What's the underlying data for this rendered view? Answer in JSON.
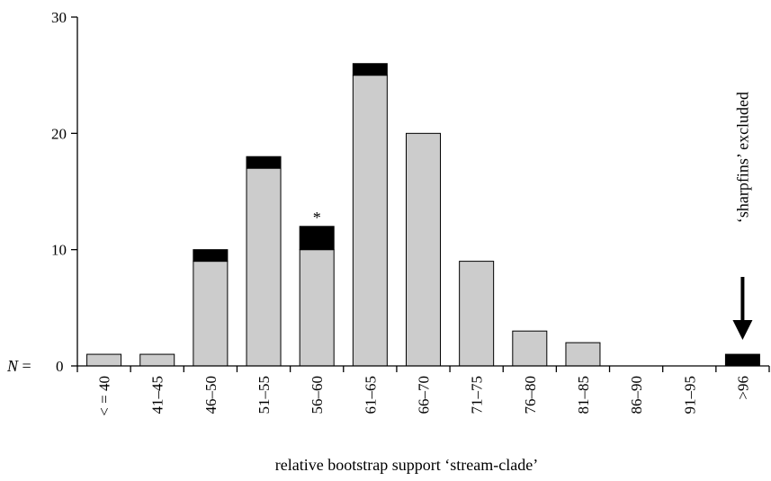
{
  "chart_data": {
    "type": "bar",
    "stacked": true,
    "categories": [
      "< = 40",
      "41–45",
      "46–50",
      "51–55",
      "56–60",
      "61–65",
      "66–70",
      "71–75",
      "76–80",
      "81–85",
      "86–90",
      "91–95",
      ">96"
    ],
    "series": [
      {
        "values": [
          1,
          1,
          9,
          17,
          10,
          25,
          20,
          9,
          3,
          2,
          0,
          0,
          0
        ],
        "color": "#cccccc"
      },
      {
        "values": [
          0,
          0,
          1,
          1,
          2,
          1,
          0,
          0,
          0,
          0,
          0,
          0,
          1
        ],
        "color": "#000000"
      }
    ],
    "xlabel": "relative bootstrap support  ‘stream-clade’",
    "ylabel_prefix": "N",
    "ylabel_suffix": " = ",
    "yticks": [
      0,
      10,
      20,
      30
    ],
    "ylim": [
      0,
      30
    ],
    "grid": false,
    "annotations": {
      "asterisk": {
        "text": "*",
        "category": "56–60"
      },
      "excluded": {
        "text": "‘sharpfins’ excluded",
        "category": ">96"
      }
    }
  }
}
